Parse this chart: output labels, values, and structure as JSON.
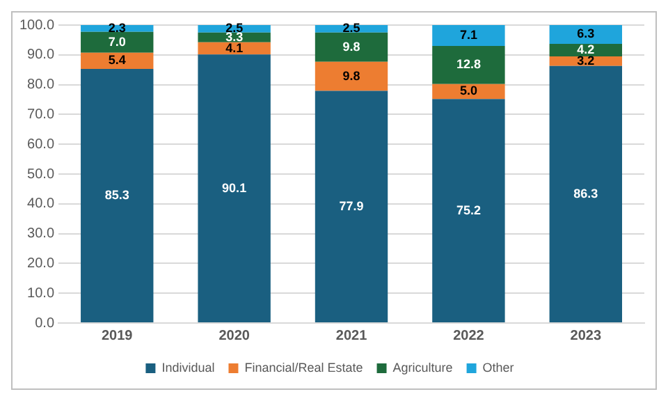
{
  "chart_data": {
    "type": "bar",
    "stacked": true,
    "categories": [
      "2019",
      "2020",
      "2021",
      "2022",
      "2023"
    ],
    "series": [
      {
        "name": "Individual",
        "color": "#1a5f80",
        "values": [
          85.3,
          90.1,
          77.9,
          75.2,
          86.3
        ],
        "value_labels": [
          "85.3",
          "90.1",
          "77.9",
          "75.2",
          "86.3"
        ]
      },
      {
        "name": "Financial/Real Estate",
        "color": "#ed7d31",
        "values": [
          5.4,
          4.1,
          9.8,
          5.0,
          3.2
        ],
        "value_labels": [
          "5.4",
          "4.1",
          "9.8",
          "5.0",
          "3.2"
        ]
      },
      {
        "name": "Agriculture",
        "color": "#1e6b3c",
        "values": [
          7.0,
          3.3,
          9.8,
          12.8,
          4.2
        ],
        "value_labels": [
          "7.0",
          "3.3",
          "9.8",
          "12.8",
          "4.2"
        ]
      },
      {
        "name": "Other",
        "color": "#1fa5dc",
        "values": [
          2.3,
          2.5,
          2.5,
          7.1,
          6.3
        ],
        "value_labels": [
          "2.3",
          "2.5",
          "2.5",
          "7.1",
          "6.3"
        ]
      }
    ],
    "ylim": [
      0,
      100
    ],
    "yticks": [
      {
        "value": 0,
        "label": "0.0"
      },
      {
        "value": 10,
        "label": "10.0"
      },
      {
        "value": 20,
        "label": "20.0"
      },
      {
        "value": 30,
        "label": "30.0"
      },
      {
        "value": 40,
        "label": "40.0"
      },
      {
        "value": 50,
        "label": "50.0"
      },
      {
        "value": 60,
        "label": "60.0"
      },
      {
        "value": 70,
        "label": "70.0"
      },
      {
        "value": 80,
        "label": "80.0"
      },
      {
        "value": 90,
        "label": "90.0"
      },
      {
        "value": 100,
        "label": "100.0"
      }
    ],
    "grid": "y",
    "legend": "bottom"
  }
}
